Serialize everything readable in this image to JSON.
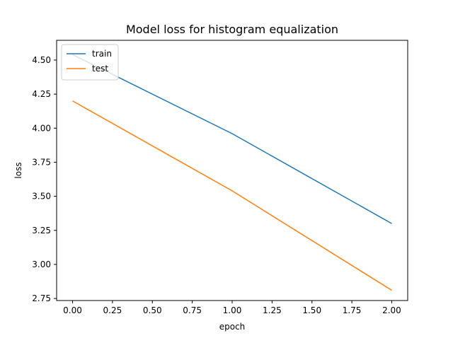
{
  "chart_data": {
    "type": "line",
    "title": "Model loss for histogram equalization",
    "xlabel": "epoch",
    "ylabel": "loss",
    "x": [
      0,
      1,
      2
    ],
    "series": [
      {
        "name": "train",
        "values": [
          4.54,
          3.96,
          3.3
        ],
        "color": "#1f77b4"
      },
      {
        "name": "test",
        "values": [
          4.2,
          3.54,
          2.81
        ],
        "color": "#ff7f0e"
      }
    ],
    "xlim": [
      -0.1,
      2.1
    ],
    "ylim": [
      2.735,
      4.645
    ],
    "xticks": [
      0.0,
      0.25,
      0.5,
      0.75,
      1.0,
      1.25,
      1.5,
      1.75,
      2.0
    ],
    "xtick_labels": [
      "0.00",
      "0.25",
      "0.50",
      "0.75",
      "1.00",
      "1.25",
      "1.50",
      "1.75",
      "2.00"
    ],
    "yticks": [
      2.75,
      3.0,
      3.25,
      3.5,
      3.75,
      4.0,
      4.25,
      4.5
    ],
    "ytick_labels": [
      "2.75",
      "3.00",
      "3.25",
      "3.50",
      "3.75",
      "4.00",
      "4.25",
      "4.50"
    ],
    "legend_position": "upper-left",
    "grid": false
  }
}
